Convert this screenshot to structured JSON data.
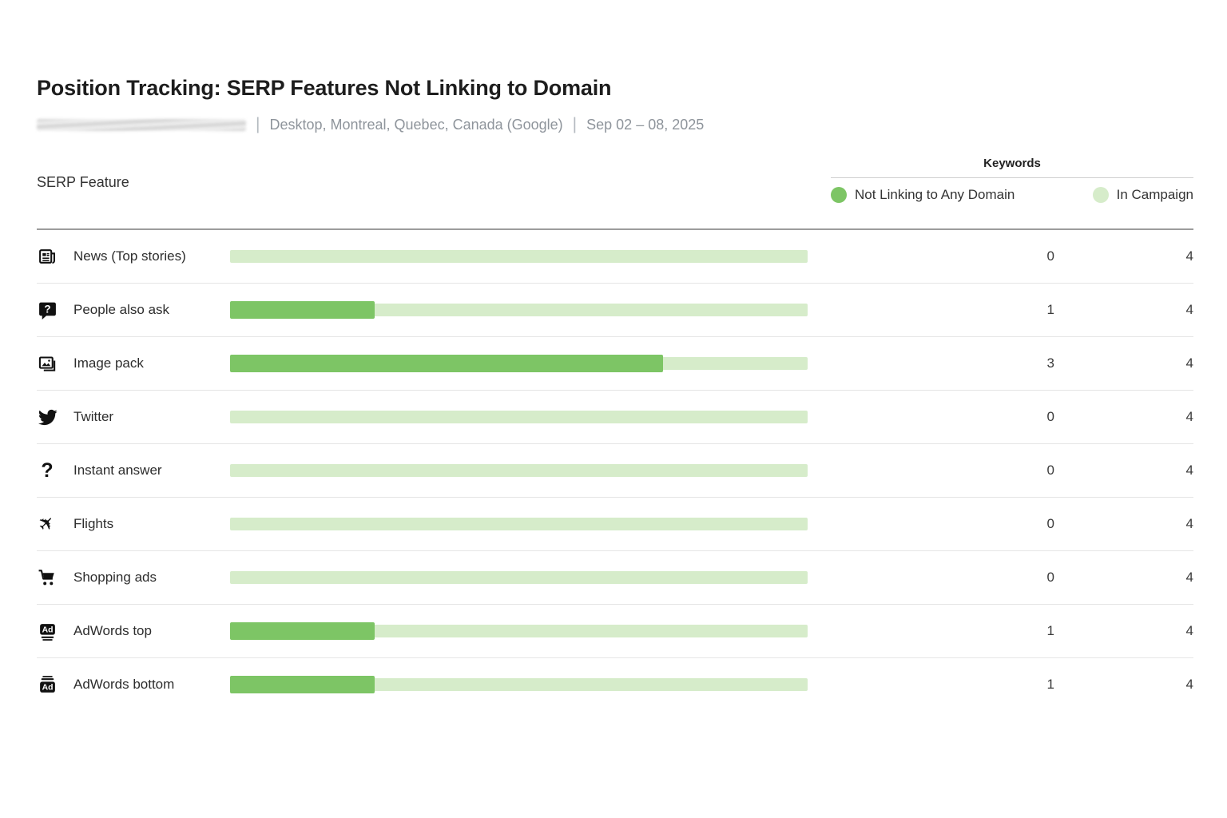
{
  "page": {
    "title": "Position Tracking: SERP Features Not Linking to Domain",
    "subtitle": {
      "domain_redacted": true,
      "separator": "|",
      "settings": "Desktop, Montreal, Quebec, Canada (Google)",
      "date_range": "Sep 02 – 08, 2025"
    }
  },
  "table": {
    "feature_column_header": "SERP Feature",
    "keywords_group_header": "Keywords",
    "legend": [
      {
        "label": "Not Linking to Any Domain",
        "color": "#7dc565"
      },
      {
        "label": "In Campaign",
        "color": "#d6ecca"
      }
    ],
    "rows": [
      {
        "icon": "news-icon",
        "feature": "News (Top stories)",
        "not_linking": 0,
        "in_campaign": 4
      },
      {
        "icon": "question-bubble-icon",
        "feature": "People also ask",
        "not_linking": 1,
        "in_campaign": 4
      },
      {
        "icon": "image-pack-icon",
        "feature": "Image pack",
        "not_linking": 3,
        "in_campaign": 4
      },
      {
        "icon": "twitter-icon",
        "feature": "Twitter",
        "not_linking": 0,
        "in_campaign": 4
      },
      {
        "icon": "question-mark-icon",
        "feature": "Instant answer",
        "not_linking": 0,
        "in_campaign": 4
      },
      {
        "icon": "flights-icon",
        "feature": "Flights",
        "not_linking": 0,
        "in_campaign": 4
      },
      {
        "icon": "shopping-cart-icon",
        "feature": "Shopping ads",
        "not_linking": 0,
        "in_campaign": 4
      },
      {
        "icon": "adwords-top-icon",
        "feature": "AdWords top",
        "not_linking": 1,
        "in_campaign": 4
      },
      {
        "icon": "adwords-bottom-icon",
        "feature": "AdWords bottom",
        "not_linking": 1,
        "in_campaign": 4
      }
    ],
    "colors": {
      "bar_dark": "#7dc565",
      "bar_light": "#d6ecca"
    }
  },
  "chart_data": {
    "type": "bar",
    "title": "Position Tracking: SERP Features Not Linking to Domain",
    "subtitle": "Desktop, Montreal, Quebec, Canada (Google) | Sep 02 – 08, 2025",
    "orientation": "horizontal",
    "categories": [
      "News (Top stories)",
      "People also ask",
      "Image pack",
      "Twitter",
      "Instant answer",
      "Flights",
      "Shopping ads",
      "AdWords top",
      "AdWords bottom"
    ],
    "series": [
      {
        "name": "Not Linking to Any Domain",
        "values": [
          0,
          1,
          3,
          0,
          0,
          0,
          0,
          1,
          1
        ],
        "color": "#7dc565"
      },
      {
        "name": "In Campaign",
        "values": [
          4,
          4,
          4,
          4,
          4,
          4,
          4,
          4,
          4
        ],
        "color": "#d6ecca"
      }
    ],
    "xlabel": "SERP Feature",
    "ylabel": "Keywords",
    "legend_position": "top-right",
    "grid": false,
    "value_columns_shown": true
  }
}
